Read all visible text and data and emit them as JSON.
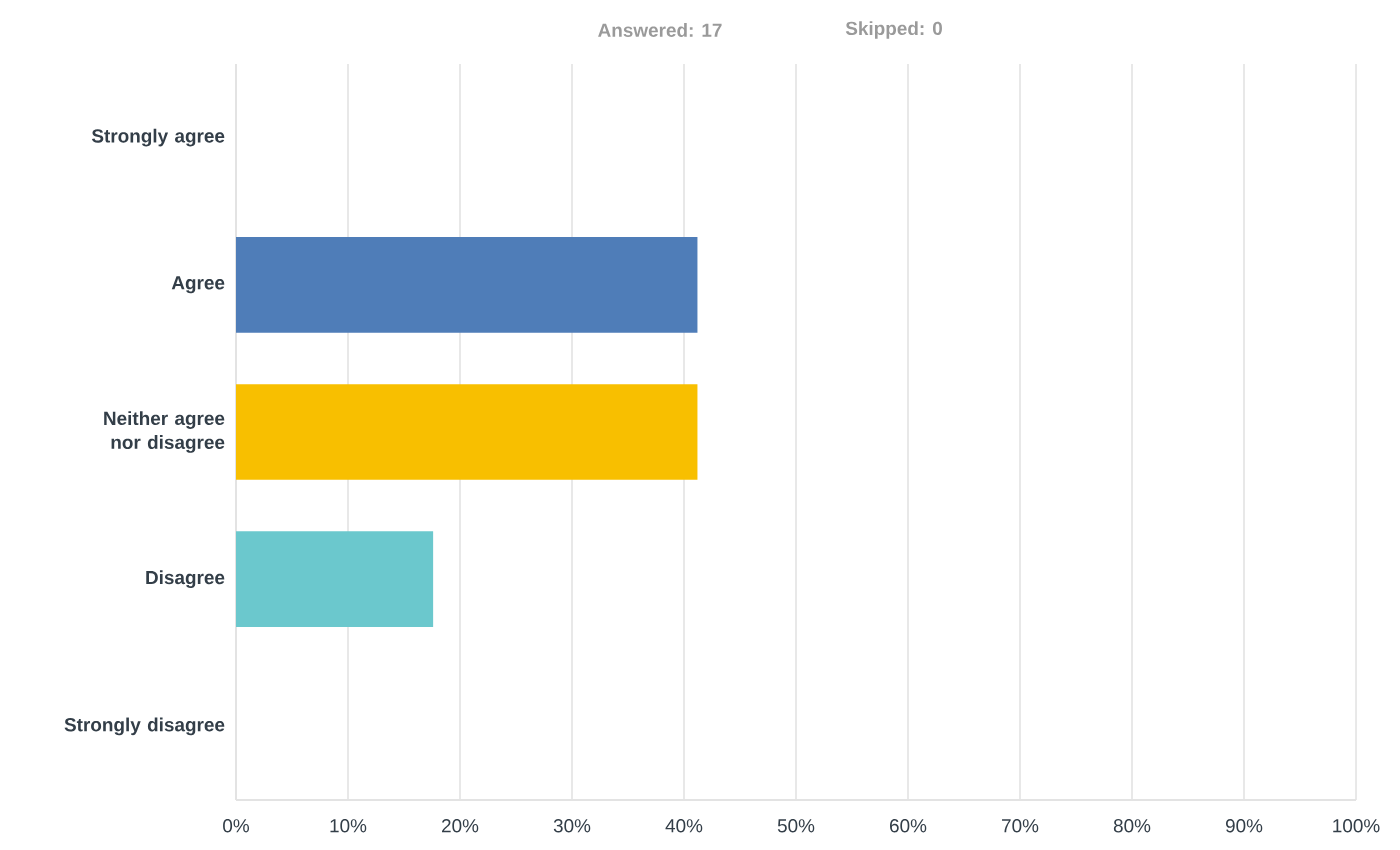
{
  "chart_data": {
    "type": "bar",
    "orientation": "horizontal",
    "categories": [
      "Strongly agree",
      "Agree",
      "Neither agree nor disagree",
      "Disagree",
      "Strongly disagree"
    ],
    "values": [
      0,
      41.2,
      41.2,
      17.6,
      0
    ],
    "colors": [
      "#4f7db8",
      "#4f7db8",
      "#f8bf00",
      "#6bc8cd",
      "#6bc8cd"
    ],
    "xlim": [
      0,
      100
    ],
    "xticks": [
      {
        "value": 0,
        "label": "0%"
      },
      {
        "value": 10,
        "label": "10%"
      },
      {
        "value": 20,
        "label": "20%"
      },
      {
        "value": 30,
        "label": "30%"
      },
      {
        "value": 40,
        "label": "40%"
      },
      {
        "value": 50,
        "label": "50%"
      },
      {
        "value": 60,
        "label": "60%"
      },
      {
        "value": 70,
        "label": "70%"
      },
      {
        "value": 80,
        "label": "80%"
      },
      {
        "value": 90,
        "label": "90%"
      },
      {
        "value": 100,
        "label": "100%"
      }
    ],
    "grid": "x",
    "annotations": [
      "Answered: 17",
      "Skipped: 0"
    ]
  }
}
